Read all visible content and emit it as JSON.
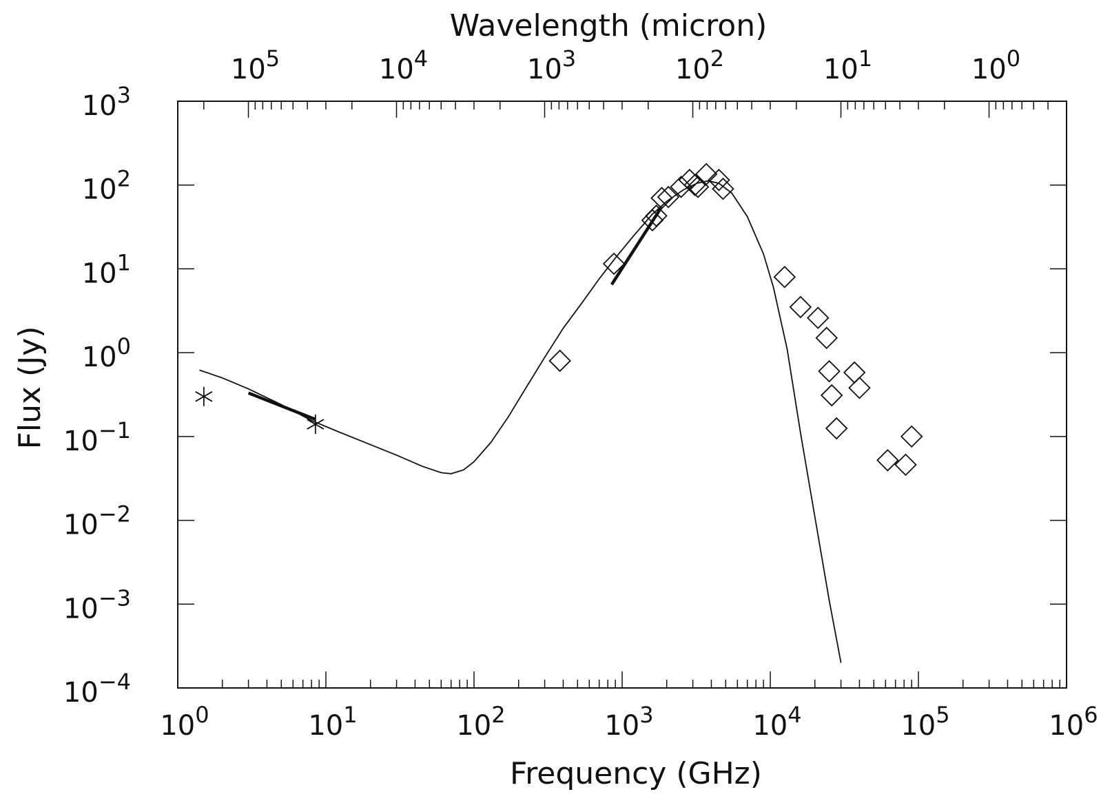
{
  "chart_data": {
    "type": "scatter",
    "title": "",
    "xlabel": "Frequency (GHz)",
    "ylabel": "Flux (Jy)",
    "x2label": "Wavelength (micron)",
    "x_scale": "log",
    "y_scale": "log",
    "xlim": [
      1,
      1000000
    ],
    "ylim": [
      0.0001,
      1000
    ],
    "x_ticks": [
      {
        "base": "10",
        "exp": "0",
        "value": 1
      },
      {
        "base": "10",
        "exp": "1",
        "value": 10
      },
      {
        "base": "10",
        "exp": "2",
        "value": 100
      },
      {
        "base": "10",
        "exp": "3",
        "value": 1000
      },
      {
        "base": "10",
        "exp": "4",
        "value": 10000
      },
      {
        "base": "10",
        "exp": "5",
        "value": 100000
      },
      {
        "base": "10",
        "exp": "6",
        "value": 1000000
      }
    ],
    "y_ticks": [
      {
        "base": "10",
        "exp": "3",
        "value": 1000
      },
      {
        "base": "10",
        "exp": "2",
        "value": 100
      },
      {
        "base": "10",
        "exp": "1",
        "value": 10
      },
      {
        "base": "10",
        "exp": "0",
        "value": 1
      },
      {
        "base": "10",
        "exp": "−1",
        "value": 0.1
      },
      {
        "base": "10",
        "exp": "−2",
        "value": 0.01
      },
      {
        "base": "10",
        "exp": "−3",
        "value": 0.001
      },
      {
        "base": "10",
        "exp": "−4",
        "value": 0.0001
      }
    ],
    "x2_ticks": [
      {
        "base": "10",
        "exp": "5",
        "value": 100000
      },
      {
        "base": "10",
        "exp": "4",
        "value": 10000
      },
      {
        "base": "10",
        "exp": "3",
        "value": 1000
      },
      {
        "base": "10",
        "exp": "2",
        "value": 100
      },
      {
        "base": "10",
        "exp": "1",
        "value": 10
      },
      {
        "base": "10",
        "exp": "0",
        "value": 1
      }
    ],
    "model_curve": {
      "x": [
        1.4,
        2,
        3,
        5,
        8,
        12,
        20,
        30,
        45,
        60,
        70,
        85,
        100,
        130,
        170,
        220,
        300,
        400,
        550,
        700,
        900,
        1200,
        1600,
        2000,
        2600,
        3200,
        3800,
        4500,
        5500,
        7000,
        9000,
        10500,
        13000,
        16000,
        20000,
        25000,
        30000
      ],
      "y": [
        0.62,
        0.5,
        0.37,
        0.24,
        0.155,
        0.115,
        0.08,
        0.06,
        0.044,
        0.037,
        0.036,
        0.04,
        0.05,
        0.085,
        0.17,
        0.36,
        0.88,
        1.95,
        4.2,
        7.6,
        13.5,
        25,
        45,
        64,
        88,
        105,
        112,
        105,
        80,
        42,
        15,
        6.0,
        1.1,
        0.11,
        0.011,
        0.0011,
        0.0002
      ]
    },
    "thick_segments": [
      {
        "x": [
          3,
          8.5
        ],
        "y": [
          0.33,
          0.16
        ]
      },
      {
        "x": [
          850,
          1850
        ],
        "y": [
          6.5,
          55
        ]
      }
    ],
    "asterisk_points": {
      "x": [
        1.5,
        8.5
      ],
      "y": [
        0.3,
        0.14
      ]
    },
    "diamond_points": {
      "x": [
        380,
        880,
        1600,
        1700,
        1850,
        2050,
        2500,
        2850,
        3100,
        3250,
        3700,
        4500,
        4800,
        12500,
        16000,
        21000,
        24000,
        25000,
        26000,
        28000,
        37000,
        40000,
        62000,
        82000,
        90000
      ],
      "y": [
        0.8,
        11.5,
        38,
        43,
        70,
        72,
        95,
        115,
        100,
        95,
        135,
        115,
        90,
        8.0,
        3.5,
        2.6,
        1.5,
        0.6,
        0.31,
        0.125,
        0.58,
        0.38,
        0.052,
        0.046,
        0.1
      ]
    },
    "grid": false,
    "legend": "none"
  }
}
